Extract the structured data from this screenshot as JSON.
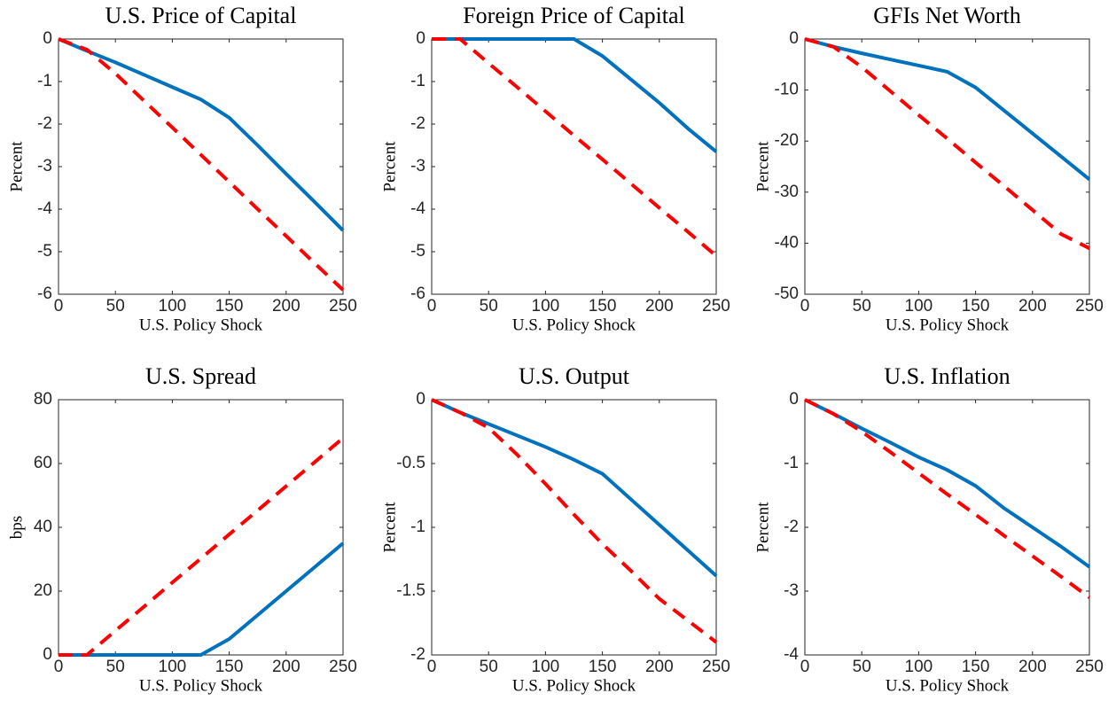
{
  "chart_data": [
    {
      "type": "line",
      "title": "U.S. Price of Capital",
      "xlabel": "U.S. Policy Shock",
      "ylabel": "Percent",
      "x": [
        0,
        25,
        50,
        75,
        100,
        125,
        150,
        175,
        200,
        225,
        250
      ],
      "xlim": [
        0,
        250
      ],
      "xticks": [
        0,
        50,
        100,
        150,
        200,
        250
      ],
      "ylim": [
        -6,
        0
      ],
      "yticks": [
        0,
        -1,
        -2,
        -3,
        -4,
        -5,
        -6
      ],
      "series": [
        {
          "color": "#0072bd",
          "style": "solid",
          "values": [
            0,
            -0.28,
            -0.55,
            -0.84,
            -1.13,
            -1.42,
            -1.85,
            -2.5,
            -3.17,
            -3.83,
            -4.5
          ]
        },
        {
          "color": "#ff0000",
          "style": "dashed",
          "values": [
            0,
            -0.25,
            -0.81,
            -1.45,
            -2.08,
            -2.72,
            -3.36,
            -4.0,
            -4.63,
            -5.27,
            -5.9
          ]
        }
      ]
    },
    {
      "type": "line",
      "title": "Foreign Price of Capital",
      "xlabel": "U.S. Policy Shock",
      "ylabel": "Percent",
      "x": [
        0,
        25,
        50,
        75,
        100,
        125,
        150,
        175,
        200,
        225,
        250
      ],
      "xlim": [
        0,
        250
      ],
      "xticks": [
        0,
        50,
        100,
        150,
        200,
        250
      ],
      "ylim": [
        -6,
        0
      ],
      "yticks": [
        0,
        -1,
        -2,
        -3,
        -4,
        -5,
        -6
      ],
      "series": [
        {
          "color": "#0072bd",
          "style": "solid",
          "values": [
            0,
            0,
            0,
            0,
            0,
            0,
            -0.4,
            -0.95,
            -1.5,
            -2.1,
            -2.65
          ]
        },
        {
          "color": "#ff0000",
          "style": "dashed",
          "values": [
            0,
            0,
            -0.57,
            -1.13,
            -1.7,
            -2.27,
            -2.83,
            -3.4,
            -3.97,
            -4.53,
            -5.1
          ]
        }
      ]
    },
    {
      "type": "line",
      "title": "GFIs Net Worth",
      "xlabel": "U.S. Policy Shock",
      "ylabel": "Percent",
      "x": [
        0,
        25,
        50,
        75,
        100,
        125,
        150,
        175,
        200,
        225,
        250
      ],
      "xlim": [
        0,
        250
      ],
      "xticks": [
        0,
        50,
        100,
        150,
        200,
        250
      ],
      "ylim": [
        -50,
        0
      ],
      "yticks": [
        0,
        -10,
        -20,
        -30,
        -40,
        -50
      ],
      "series": [
        {
          "color": "#0072bd",
          "style": "solid",
          "values": [
            0,
            -1.5,
            -2.8,
            -4.0,
            -5.2,
            -6.4,
            -9.5,
            -14,
            -18.5,
            -23,
            -27.5
          ]
        },
        {
          "color": "#ff0000",
          "style": "dashed",
          "values": [
            0,
            -1.5,
            -5.5,
            -10.2,
            -14.9,
            -19.5,
            -24.2,
            -28.8,
            -33.5,
            -38.2,
            -41
          ]
        }
      ]
    },
    {
      "type": "line",
      "title": "U.S. Spread",
      "xlabel": "U.S. Policy Shock",
      "ylabel": "bps",
      "x": [
        0,
        25,
        50,
        75,
        100,
        125,
        150,
        175,
        200,
        225,
        250
      ],
      "xlim": [
        0,
        250
      ],
      "xticks": [
        0,
        50,
        100,
        150,
        200,
        250
      ],
      "ylim": [
        0,
        80
      ],
      "yticks": [
        0,
        20,
        40,
        60,
        80
      ],
      "series": [
        {
          "color": "#0072bd",
          "style": "solid",
          "values": [
            0,
            0,
            0,
            0,
            0,
            0,
            5,
            12.5,
            20,
            27.5,
            35
          ]
        },
        {
          "color": "#ff0000",
          "style": "dashed",
          "values": [
            0,
            0,
            7.6,
            15.1,
            22.7,
            30.2,
            37.8,
            45.3,
            52.9,
            60.4,
            68
          ]
        }
      ]
    },
    {
      "type": "line",
      "title": "U.S. Output",
      "xlabel": "U.S. Policy Shock",
      "ylabel": "Percent",
      "x": [
        0,
        25,
        50,
        75,
        100,
        125,
        150,
        175,
        200,
        225,
        250
      ],
      "xlim": [
        0,
        250
      ],
      "xticks": [
        0,
        50,
        100,
        150,
        200,
        250
      ],
      "ylim": [
        -2,
        0
      ],
      "yticks": [
        0,
        -0.5,
        -1,
        -1.5,
        -2
      ],
      "series": [
        {
          "color": "#0072bd",
          "style": "solid",
          "values": [
            0,
            -0.1,
            -0.19,
            -0.28,
            -0.37,
            -0.47,
            -0.58,
            -0.78,
            -0.98,
            -1.18,
            -1.38
          ]
        },
        {
          "color": "#ff0000",
          "style": "dashed",
          "values": [
            0,
            -0.1,
            -0.22,
            -0.43,
            -0.66,
            -0.9,
            -1.13,
            -1.34,
            -1.56,
            -1.73,
            -1.9
          ]
        }
      ]
    },
    {
      "type": "line",
      "title": "U.S. Inflation",
      "xlabel": "U.S. Policy Shock",
      "ylabel": "Percent",
      "x": [
        0,
        25,
        50,
        75,
        100,
        125,
        150,
        175,
        200,
        225,
        250
      ],
      "xlim": [
        0,
        250
      ],
      "xticks": [
        0,
        50,
        100,
        150,
        200,
        250
      ],
      "ylim": [
        -4,
        0
      ],
      "yticks": [
        0,
        -1,
        -2,
        -3,
        -4
      ],
      "series": [
        {
          "color": "#0072bd",
          "style": "solid",
          "values": [
            0,
            -0.22,
            -0.45,
            -0.67,
            -0.9,
            -1.1,
            -1.35,
            -1.7,
            -2.0,
            -2.3,
            -2.62
          ]
        },
        {
          "color": "#ff0000",
          "style": "dashed",
          "values": [
            0,
            -0.22,
            -0.5,
            -0.82,
            -1.15,
            -1.48,
            -1.8,
            -2.13,
            -2.45,
            -2.77,
            -3.1
          ]
        }
      ]
    }
  ]
}
